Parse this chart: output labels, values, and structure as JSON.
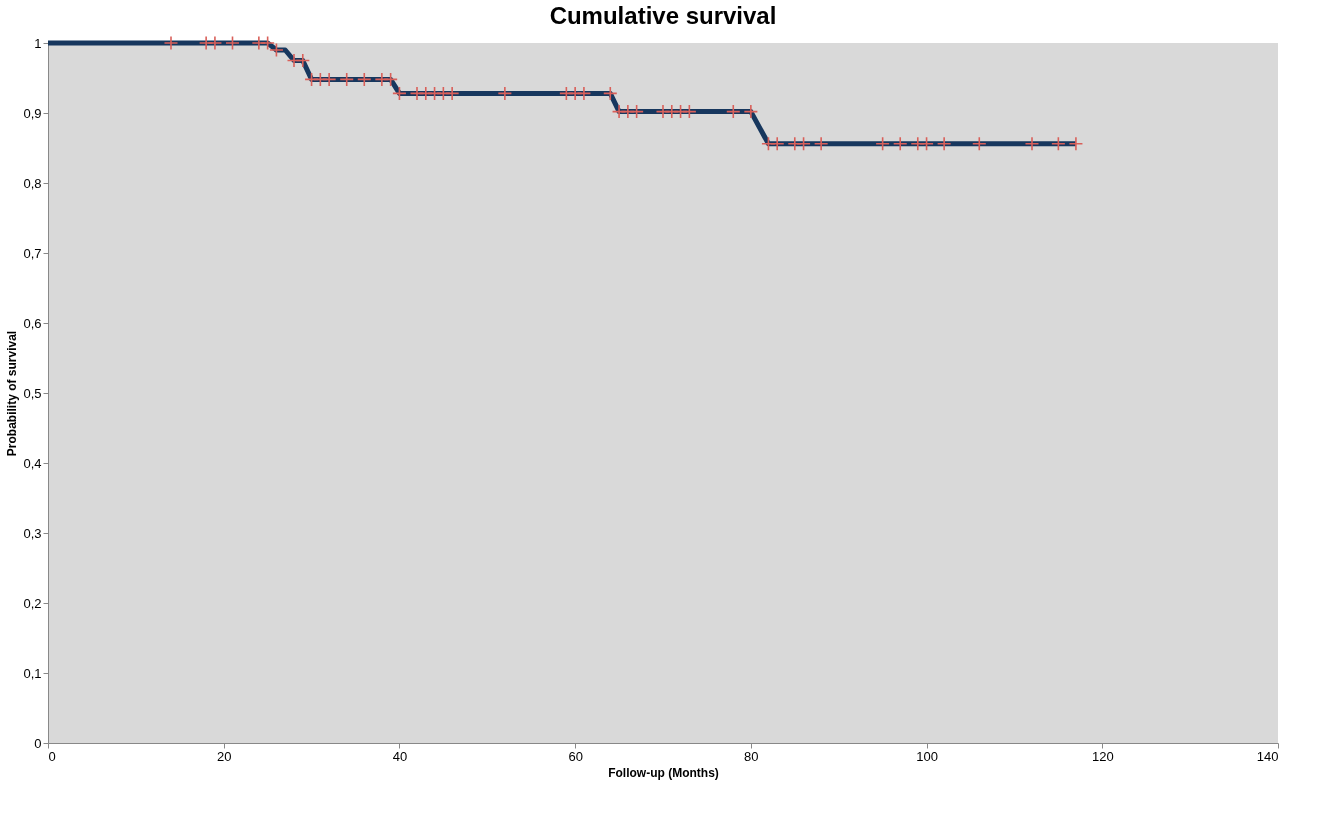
{
  "chart_data": {
    "type": "line",
    "title": "Cumulative survival",
    "xlabel": "Follow-up (Months)",
    "ylabel": "Probability of survival",
    "xlim": [
      0,
      140
    ],
    "xticks": [
      0,
      20,
      40,
      60,
      80,
      100,
      120,
      140
    ],
    "ylim": [
      0,
      1
    ],
    "yticks": [
      0,
      {
        "value": 0.1,
        "label": "0,1"
      },
      {
        "value": 0.2,
        "label": "0,2"
      },
      {
        "value": 0.3,
        "label": "0,3"
      },
      {
        "value": 0.4,
        "label": "0,4"
      },
      {
        "value": 0.5,
        "label": "0,5"
      },
      {
        "value": 0.6,
        "label": "0,6"
      },
      {
        "value": 0.7,
        "label": "0,7"
      },
      {
        "value": 0.8,
        "label": "0,8"
      },
      {
        "value": 0.9,
        "label": "0,9"
      },
      1
    ],
    "grid": false,
    "series": [
      {
        "color": "#17375e",
        "marker": "none",
        "line_style": "solid",
        "x": [
          0,
          25,
          26,
          27,
          28,
          29,
          30,
          39,
          40,
          64,
          65,
          80,
          82,
          117
        ],
        "values": [
          1,
          1,
          0.99,
          0.99,
          0.975,
          0.975,
          0.948,
          0.948,
          0.928,
          0.928,
          0.902,
          0.902,
          0.856,
          0.856
        ]
      },
      {
        "type": "scatter",
        "color": "#d9605a",
        "marker": "cross",
        "x": [
          14,
          18,
          19,
          21,
          24,
          25,
          26,
          28,
          29,
          30,
          31,
          32,
          34,
          36,
          38,
          39,
          40,
          42,
          43,
          44,
          45,
          46,
          52,
          59,
          60,
          61,
          64,
          65,
          66,
          67,
          70,
          71,
          72,
          73,
          78,
          80,
          82,
          83,
          85,
          86,
          88,
          95,
          97,
          99,
          100,
          102,
          106,
          112,
          115,
          117
        ],
        "values": [
          1,
          1,
          1,
          1,
          1,
          1,
          0.99,
          0.975,
          0.975,
          0.948,
          0.948,
          0.948,
          0.948,
          0.948,
          0.948,
          0.948,
          0.928,
          0.928,
          0.928,
          0.928,
          0.928,
          0.928,
          0.928,
          0.928,
          0.928,
          0.928,
          0.928,
          0.902,
          0.902,
          0.902,
          0.902,
          0.902,
          0.902,
          0.902,
          0.902,
          0.902,
          0.856,
          0.856,
          0.856,
          0.856,
          0.856,
          0.856,
          0.856,
          0.856,
          0.856,
          0.856,
          0.856,
          0.856,
          0.856,
          0.856
        ]
      }
    ]
  }
}
